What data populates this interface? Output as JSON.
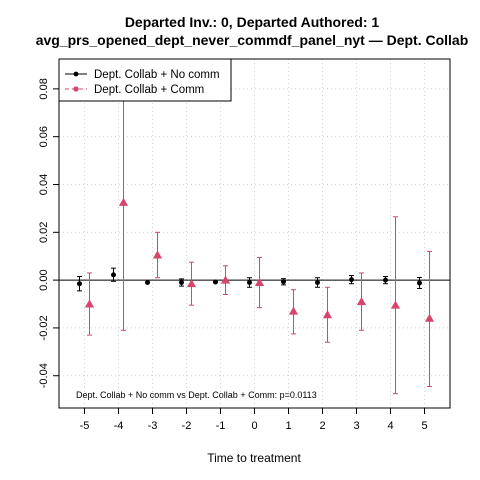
{
  "chart_data": {
    "type": "scatter",
    "title": "Departed Inv.: 0, Departed Authored: 1",
    "subtitle": "avg_prs_opened_dept_never_commdf_panel_nyt — Dept. Collab",
    "xlabel": "Time to treatment",
    "ylabel": "",
    "x_ticks": [
      -5,
      -4,
      -3,
      -2,
      -1,
      0,
      1,
      2,
      3,
      4,
      5
    ],
    "y_ticks": [
      -0.04,
      -0.02,
      0.0,
      0.02,
      0.04,
      0.06,
      0.08
    ],
    "y_tick_labels": [
      "-0.04",
      "-0.02",
      "0.00",
      "0.02",
      "0.04",
      "0.06",
      "0.08"
    ],
    "xlim": [
      -5.75,
      5.75
    ],
    "ylim": [
      -0.0535,
      0.0925
    ],
    "grid": true,
    "reference_line": 0,
    "legend_position": "top-left",
    "annotation": "Dept. Collab + No comm vs Dept. Collab + Comm: p=0.0113",
    "series": [
      {
        "name": "Dept. Collab + No comm",
        "color": "#000000",
        "marker": "circle",
        "x": [
          -5,
          -4,
          -3,
          -2,
          -1,
          0,
          1,
          2,
          3,
          4,
          5
        ],
        "y": [
          -0.0015,
          0.0022,
          -0.001,
          -0.001,
          -0.0008,
          -0.001,
          -0.0007,
          -0.001,
          0.0002,
          0.0,
          -0.0012
        ],
        "ci_low": [
          -0.0045,
          -0.0005,
          -0.001,
          -0.0025,
          -0.001,
          -0.003,
          -0.002,
          -0.003,
          -0.0015,
          -0.0015,
          -0.0035
        ],
        "ci_high": [
          0.0015,
          0.005,
          -0.001,
          0.0005,
          -0.0006,
          0.001,
          0.0006,
          0.001,
          0.0019,
          0.0015,
          0.0011
        ]
      },
      {
        "name": "Dept. Collab + Comm",
        "color": "#d6456b",
        "marker": "triangle",
        "x": [
          -5,
          -4,
          -3,
          -2,
          -1,
          0,
          1,
          2,
          3,
          4,
          5
        ],
        "y": [
          -0.01,
          0.0325,
          0.0105,
          -0.0015,
          0.0,
          -0.001,
          -0.013,
          -0.0145,
          -0.009,
          -0.0105,
          -0.016
        ],
        "ci_low": [
          -0.023,
          -0.021,
          0.001,
          -0.0105,
          -0.006,
          -0.0115,
          -0.0225,
          -0.026,
          -0.021,
          -0.0475,
          -0.0445
        ],
        "ci_high": [
          0.003,
          0.086,
          0.02,
          0.0075,
          0.006,
          0.0095,
          -0.004,
          -0.003,
          0.003,
          0.0265,
          0.012
        ]
      }
    ]
  }
}
